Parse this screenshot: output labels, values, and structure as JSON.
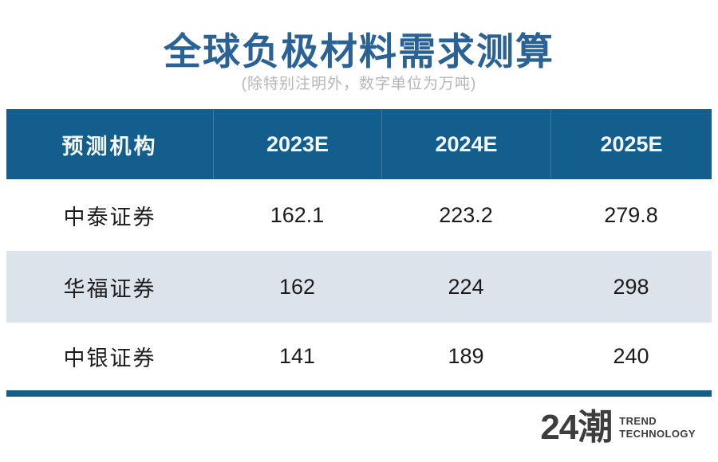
{
  "page": {
    "title": "全球负极材料需求测算",
    "subtitle": "(除特别注明外，数字单位为万吨)"
  },
  "chart_data": {
    "type": "table",
    "title": "全球负极材料需求测算",
    "subtitle": "(除特别注明外，数字单位为万吨)",
    "unit": "万吨",
    "columns": [
      "预测机构",
      "2023E",
      "2024E",
      "2025E"
    ],
    "rows": [
      [
        "中泰证券",
        162.1,
        223.2,
        279.8
      ],
      [
        "华福证券",
        162,
        224,
        298
      ],
      [
        "中银证券",
        141,
        189,
        240
      ]
    ]
  },
  "footer": {
    "logo_text": "24潮",
    "brand_line1": "TREND",
    "brand_line2": "TECHNOLOGY"
  },
  "colors": {
    "title_blue": "#2b6295",
    "header_bg": "#135e8d",
    "accent_bar": "#135e8d",
    "row_alt_bg": "#dde3ea",
    "subtitle_gray": "#b5b5b5",
    "brand_gray": "#3d3d3d"
  }
}
